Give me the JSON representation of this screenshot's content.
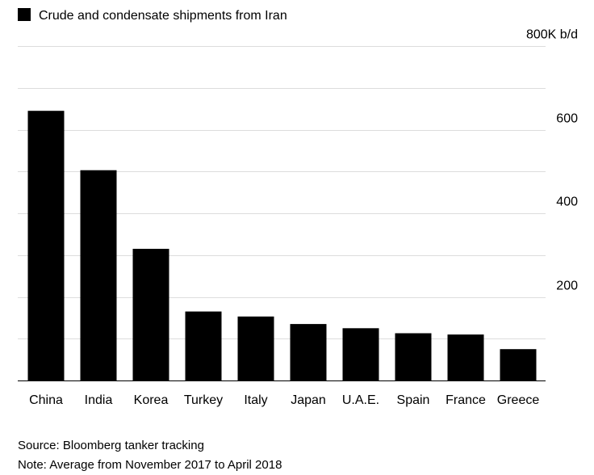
{
  "chart_data": {
    "type": "bar",
    "legend": [
      {
        "label": "Crude and condensate shipments from Iran",
        "color": "#000000"
      }
    ],
    "legend_position": "top-left",
    "categories": [
      "China",
      "India",
      "Korea",
      "Turkey",
      "Italy",
      "Japan",
      "U.A.E.",
      "Spain",
      "France",
      "Greece"
    ],
    "values": [
      645,
      503,
      315,
      165,
      153,
      135,
      125,
      113,
      110,
      75
    ],
    "yticks": [
      200,
      400,
      600,
      800
    ],
    "ytick_labels": [
      "200",
      "400",
      "600",
      "800K b/d"
    ],
    "ylim": [
      0,
      800
    ],
    "y_axis_position": "right",
    "grid": true,
    "minor_grid_values": [
      100,
      300,
      500,
      700
    ],
    "bar_color": "#000000",
    "gridline_color": "#dddddd",
    "axis_color": "#000000"
  },
  "footer": {
    "source": "Source: Bloomberg tanker tracking",
    "note": "Note: Average from November 2017 to April 2018"
  }
}
